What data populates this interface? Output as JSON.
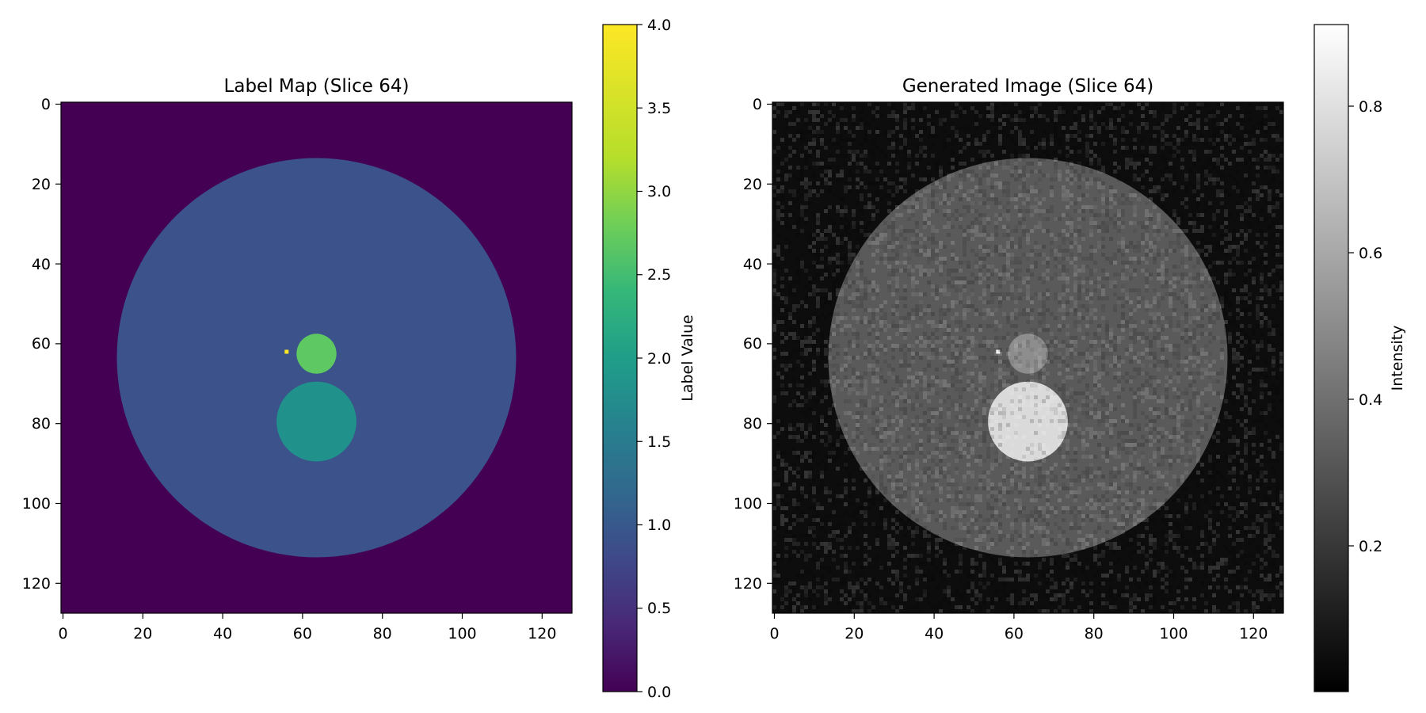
{
  "chart_data": [
    {
      "type": "heatmap",
      "title": "Label Map (Slice 64)",
      "grid_size": [
        128,
        128
      ],
      "xlim": [
        0,
        128
      ],
      "ylim": [
        128,
        0
      ],
      "x_ticks": [
        "0",
        "20",
        "40",
        "60",
        "80",
        "100",
        "120"
      ],
      "y_ticks": [
        "0",
        "20",
        "40",
        "60",
        "80",
        "100",
        "120"
      ],
      "colormap": "viridis",
      "colorbar": {
        "label": "Label Value",
        "range": [
          0.0,
          4.0
        ],
        "ticks": [
          "0.0",
          "0.5",
          "1.0",
          "1.5",
          "2.0",
          "2.5",
          "3.0",
          "3.5",
          "4.0"
        ]
      },
      "regions": [
        {
          "label_value": 0,
          "shape": "background",
          "color": "#440154"
        },
        {
          "label_value": 1,
          "shape": "disk",
          "center": [
            64,
            64
          ],
          "radius": 50,
          "color": "#3b528b"
        },
        {
          "label_value": 2,
          "shape": "disk",
          "center": [
            64,
            80
          ],
          "radius": 10,
          "color": "#21918c"
        },
        {
          "label_value": 3,
          "shape": "disk",
          "center": [
            64,
            63
          ],
          "radius": 5,
          "color": "#5ec962"
        },
        {
          "label_value": 4,
          "shape": "pixel",
          "center": [
            56,
            62
          ],
          "color": "#fde725"
        }
      ]
    },
    {
      "type": "heatmap",
      "title": "Generated Image (Slice 64)",
      "grid_size": [
        128,
        128
      ],
      "xlim": [
        0,
        128
      ],
      "ylim": [
        128,
        0
      ],
      "x_ticks": [
        "0",
        "20",
        "40",
        "60",
        "80",
        "100",
        "120"
      ],
      "y_ticks": [
        "0",
        "20",
        "40",
        "60",
        "80",
        "100",
        "120"
      ],
      "colormap": "gray",
      "colorbar": {
        "label": "Intensity",
        "range": [
          0.0,
          0.92
        ],
        "ticks": [
          "0.2",
          "0.4",
          "0.6",
          "0.8"
        ]
      },
      "regions": [
        {
          "label_value": 0,
          "shape": "background",
          "intensity": 0.05
        },
        {
          "label_value": 1,
          "shape": "disk",
          "center": [
            64,
            64
          ],
          "radius": 50,
          "intensity": 0.35
        },
        {
          "label_value": 2,
          "shape": "disk",
          "center": [
            64,
            80
          ],
          "radius": 10,
          "intensity": 0.85
        },
        {
          "label_value": 3,
          "shape": "disk",
          "center": [
            64,
            63
          ],
          "radius": 5,
          "intensity": 0.55
        },
        {
          "label_value": 4,
          "shape": "pixel",
          "center": [
            56,
            62
          ],
          "intensity": 0.95
        }
      ],
      "noise_std": 0.05
    }
  ]
}
